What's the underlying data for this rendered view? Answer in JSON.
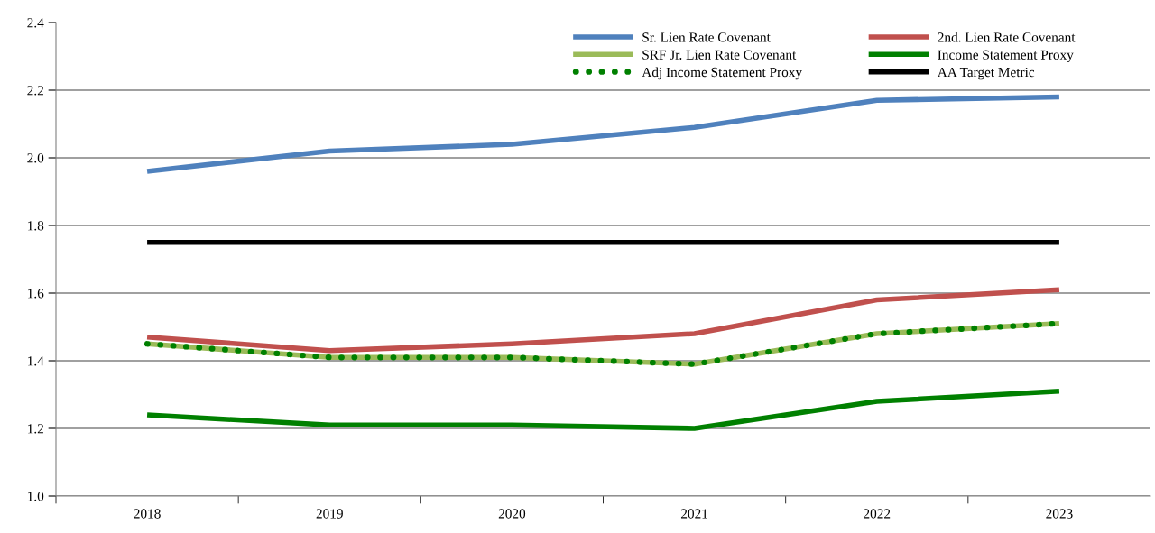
{
  "chart_data": {
    "type": "line",
    "categories": [
      "2018",
      "2019",
      "2020",
      "2021",
      "2022",
      "2023"
    ],
    "series": [
      {
        "name": "Sr. Lien Rate Covenant",
        "color": "#4f81bd",
        "line_style": "solid",
        "values": [
          1.96,
          2.02,
          2.04,
          2.09,
          2.17,
          2.18
        ]
      },
      {
        "name": "2nd. Lien Rate Covenant",
        "color": "#c0504d",
        "line_style": "solid",
        "values": [
          1.47,
          1.43,
          1.45,
          1.48,
          1.58,
          1.61
        ]
      },
      {
        "name": "SRF Jr. Lien Rate Covenant",
        "color": "#9bbb59",
        "line_style": "solid",
        "values": [
          1.45,
          1.41,
          1.41,
          1.39,
          1.48,
          1.51
        ]
      },
      {
        "name": "Income Statement Proxy",
        "color": "#008000",
        "line_style": "solid",
        "values": [
          1.24,
          1.21,
          1.21,
          1.2,
          1.28,
          1.31
        ]
      },
      {
        "name": "Adj Income Statement Proxy",
        "color": "#008000",
        "line_style": "dotted",
        "values": [
          1.45,
          1.41,
          1.41,
          1.39,
          1.48,
          1.51
        ]
      },
      {
        "name": "AA Target Metric",
        "color": "#000000",
        "line_style": "solid",
        "values": [
          1.75,
          1.75,
          1.75,
          1.75,
          1.75,
          1.75
        ]
      }
    ],
    "ylim": [
      1.0,
      2.4
    ],
    "yticks": [
      {
        "value": 1.0,
        "label": "1.0"
      },
      {
        "value": 1.2,
        "label": "1.2"
      },
      {
        "value": 1.4,
        "label": "1.4"
      },
      {
        "value": 1.6,
        "label": "1.6"
      },
      {
        "value": 1.8,
        "label": "1.8"
      },
      {
        "value": 2.0,
        "label": "2.0"
      },
      {
        "value": 2.2,
        "label": "2.2"
      },
      {
        "value": 2.4,
        "label": "2.4"
      }
    ],
    "grid": "y",
    "legend": "top right",
    "marker": "none"
  }
}
